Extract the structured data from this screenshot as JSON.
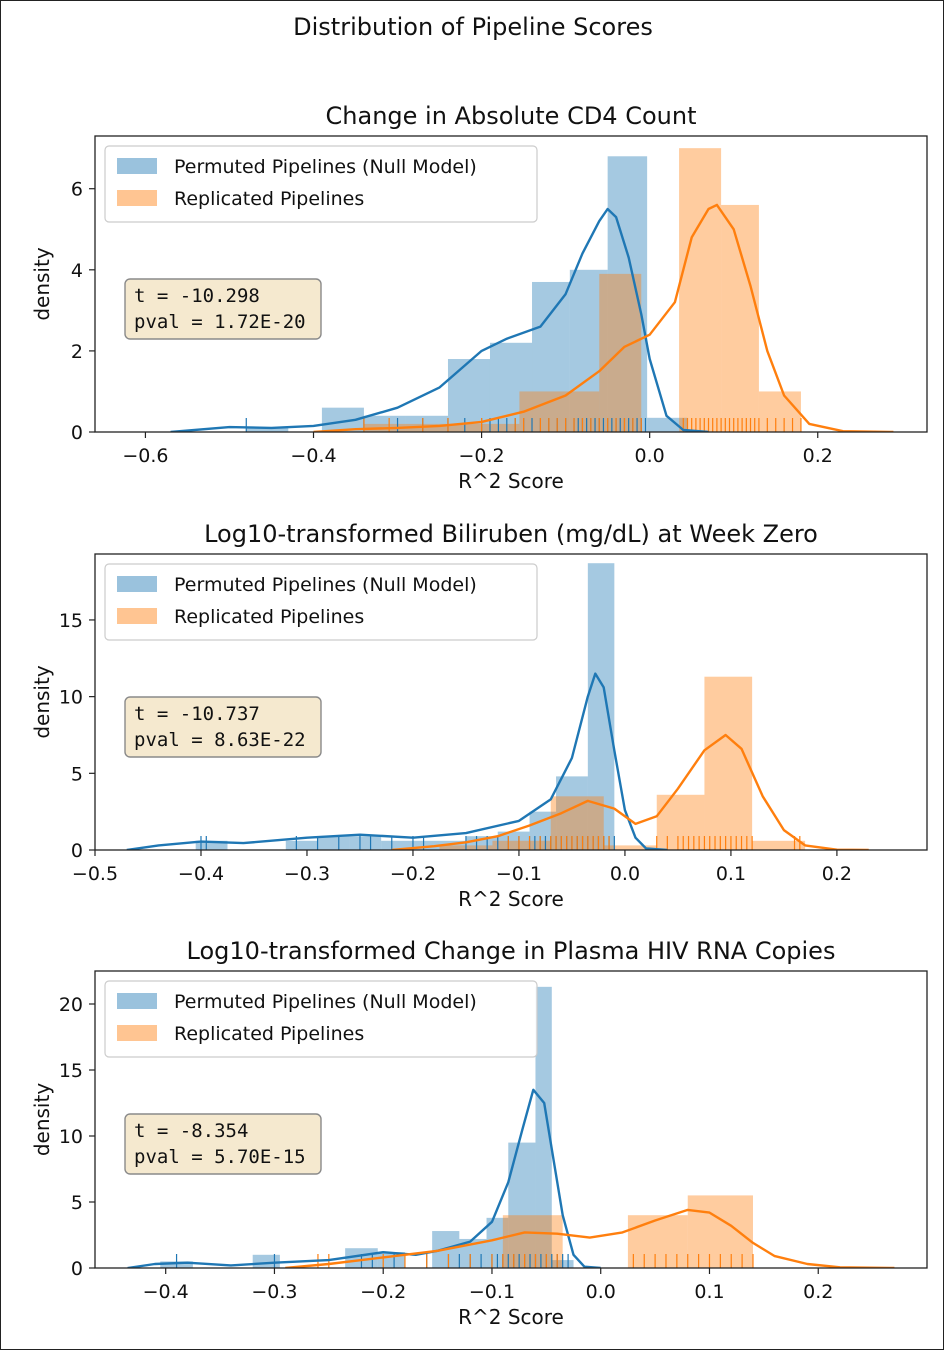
{
  "figure": {
    "title": "Distribution of Pipeline Scores"
  },
  "colors": {
    "null": "#1f77b4",
    "replicated": "#ff7f0e",
    "stat_box_fill": "#f5e9cf",
    "stat_box_edge": "#8a8a8a"
  },
  "chart_data": [
    {
      "type": "bar",
      "title": "Change in Absolute CD4 Count",
      "xlabel": "R^2 Score",
      "ylabel": "density",
      "xlim": [
        -0.66,
        0.33
      ],
      "ylim": [
        0,
        7.3
      ],
      "xticks": [
        -0.6,
        -0.4,
        -0.2,
        0.0,
        0.2
      ],
      "xtick_labels": [
        "−0.6",
        "−0.4",
        "−0.2",
        "0.0",
        "0.2"
      ],
      "yticks": [
        0,
        2,
        4,
        6
      ],
      "ytick_labels": [
        "0",
        "2",
        "4",
        "6"
      ],
      "legend": [
        "Permuted Pipelines (Null Model)",
        "Replicated Pipelines"
      ],
      "stats": {
        "t_label": "t = -10.298",
        "pval_label": "pval = 1.72E-20"
      },
      "series": [
        {
          "name": "Permuted Pipelines (Null Model)",
          "bins": [
            [
              -0.48,
              -0.43,
              0.1
            ],
            [
              -0.39,
              -0.34,
              0.6
            ],
            [
              -0.34,
              -0.29,
              0.4
            ],
            [
              -0.29,
              -0.24,
              0.4
            ],
            [
              -0.24,
              -0.19,
              1.8
            ],
            [
              -0.19,
              -0.14,
              2.2
            ],
            [
              -0.14,
              -0.095,
              3.7
            ],
            [
              -0.095,
              -0.05,
              4.0
            ],
            [
              -0.05,
              -0.003,
              6.8
            ],
            [
              -0.003,
              0.045,
              0.35
            ]
          ],
          "kde": [
            [
              -0.57,
              0.0
            ],
            [
              -0.5,
              0.12
            ],
            [
              -0.45,
              0.1
            ],
            [
              -0.4,
              0.15
            ],
            [
              -0.35,
              0.3
            ],
            [
              -0.3,
              0.6
            ],
            [
              -0.25,
              1.1
            ],
            [
              -0.2,
              2.0
            ],
            [
              -0.17,
              2.3
            ],
            [
              -0.13,
              2.6
            ],
            [
              -0.1,
              3.4
            ],
            [
              -0.08,
              4.4
            ],
            [
              -0.06,
              5.2
            ],
            [
              -0.05,
              5.5
            ],
            [
              -0.04,
              5.3
            ],
            [
              -0.025,
              4.3
            ],
            [
              -0.01,
              2.9
            ],
            [
              0.0,
              1.8
            ],
            [
              0.02,
              0.4
            ],
            [
              0.04,
              0.05
            ],
            [
              0.07,
              0.0
            ]
          ],
          "rug": [
            -0.48,
            -0.34,
            -0.3,
            -0.27,
            -0.24,
            -0.22,
            -0.2,
            -0.19,
            -0.18,
            -0.17,
            -0.16,
            -0.15,
            -0.14,
            -0.13,
            -0.12,
            -0.11,
            -0.1,
            -0.09,
            -0.085,
            -0.08,
            -0.075,
            -0.07,
            -0.065,
            -0.06,
            -0.055,
            -0.05,
            -0.045,
            -0.04,
            -0.035,
            -0.03,
            -0.025,
            -0.02,
            -0.015,
            -0.01,
            -0.005
          ]
        },
        {
          "name": "Replicated Pipelines",
          "bins": [
            [
              -0.34,
              -0.24,
              0.2
            ],
            [
              -0.24,
              -0.155,
              0.2
            ],
            [
              -0.155,
              -0.06,
              1.0
            ],
            [
              -0.06,
              -0.01,
              3.9
            ],
            [
              0.035,
              0.085,
              7.0
            ],
            [
              0.085,
              0.13,
              5.6
            ],
            [
              0.13,
              0.18,
              1.0
            ]
          ],
          "kde": [
            [
              -0.4,
              0.0
            ],
            [
              -0.35,
              0.07
            ],
            [
              -0.3,
              0.1
            ],
            [
              -0.25,
              0.15
            ],
            [
              -0.2,
              0.25
            ],
            [
              -0.15,
              0.5
            ],
            [
              -0.1,
              0.9
            ],
            [
              -0.06,
              1.5
            ],
            [
              -0.03,
              2.1
            ],
            [
              0.0,
              2.4
            ],
            [
              0.03,
              3.2
            ],
            [
              0.05,
              4.8
            ],
            [
              0.07,
              5.5
            ],
            [
              0.08,
              5.6
            ],
            [
              0.1,
              5.0
            ],
            [
              0.12,
              3.6
            ],
            [
              0.14,
              2.0
            ],
            [
              0.16,
              0.9
            ],
            [
              0.19,
              0.2
            ],
            [
              0.23,
              0.02
            ],
            [
              0.29,
              0.0
            ]
          ],
          "rug": [
            -0.34,
            -0.31,
            -0.27,
            -0.24,
            -0.2,
            -0.16,
            -0.15,
            -0.13,
            -0.12,
            -0.11,
            -0.1,
            -0.09,
            -0.08,
            -0.07,
            -0.06,
            -0.05,
            -0.04,
            -0.03,
            -0.02,
            -0.01,
            0.04,
            0.045,
            0.05,
            0.055,
            0.06,
            0.065,
            0.07,
            0.075,
            0.08,
            0.085,
            0.09,
            0.095,
            0.1,
            0.105,
            0.11,
            0.115,
            0.12,
            0.125,
            0.13,
            0.14,
            0.15,
            0.16,
            0.17,
            0.18
          ]
        }
      ]
    },
    {
      "type": "bar",
      "title": "Log10-transformed Biliruben (mg/dL) at Week Zero",
      "xlabel": "R^2 Score",
      "ylabel": "density",
      "xlim": [
        -0.5,
        0.285
      ],
      "ylim": [
        0,
        19.3
      ],
      "xticks": [
        -0.5,
        -0.4,
        -0.3,
        -0.2,
        -0.1,
        0.0,
        0.1,
        0.2
      ],
      "xtick_labels": [
        "−0.5",
        "−0.4",
        "−0.3",
        "−0.2",
        "−0.1",
        "0.0",
        "0.1",
        "0.2"
      ],
      "yticks": [
        0,
        5,
        10,
        15
      ],
      "ytick_labels": [
        "0",
        "5",
        "10",
        "15"
      ],
      "legend": [
        "Permuted Pipelines (Null Model)",
        "Replicated Pipelines"
      ],
      "stats": {
        "t_label": "t = -10.737",
        "pval_label": "pval = 8.63E-22"
      },
      "series": [
        {
          "name": "Permuted Pipelines (Null Model)",
          "bins": [
            [
              -0.405,
              -0.375,
              0.6
            ],
            [
              -0.32,
              -0.29,
              0.6
            ],
            [
              -0.29,
              -0.26,
              0.9
            ],
            [
              -0.26,
              -0.23,
              0.9
            ],
            [
              -0.23,
              -0.2,
              0.6
            ],
            [
              -0.2,
              -0.175,
              0.6
            ],
            [
              -0.175,
              -0.15,
              0.6
            ],
            [
              -0.15,
              -0.12,
              0.9
            ],
            [
              -0.12,
              -0.09,
              1.2
            ],
            [
              -0.09,
              -0.065,
              2.5
            ],
            [
              -0.065,
              -0.035,
              4.8
            ],
            [
              -0.035,
              -0.01,
              18.7
            ]
          ],
          "kde": [
            [
              -0.47,
              0.0
            ],
            [
              -0.44,
              0.3
            ],
            [
              -0.4,
              0.55
            ],
            [
              -0.36,
              0.45
            ],
            [
              -0.3,
              0.8
            ],
            [
              -0.25,
              1.0
            ],
            [
              -0.2,
              0.8
            ],
            [
              -0.15,
              1.1
            ],
            [
              -0.1,
              1.9
            ],
            [
              -0.07,
              3.3
            ],
            [
              -0.05,
              6.0
            ],
            [
              -0.035,
              10.0
            ],
            [
              -0.028,
              11.5
            ],
            [
              -0.02,
              10.6
            ],
            [
              -0.01,
              6.5
            ],
            [
              0.0,
              2.6
            ],
            [
              0.01,
              0.8
            ],
            [
              0.02,
              0.1
            ],
            [
              0.04,
              0.0
            ]
          ],
          "rug": [
            -0.4,
            -0.395,
            -0.31,
            -0.29,
            -0.27,
            -0.25,
            -0.24,
            -0.22,
            -0.2,
            -0.19,
            -0.15,
            -0.14,
            -0.13,
            -0.12,
            -0.11,
            -0.1,
            -0.09,
            -0.085,
            -0.08,
            -0.075,
            -0.07,
            -0.065,
            -0.06,
            -0.055,
            -0.05,
            -0.045,
            -0.04,
            -0.035,
            -0.03,
            -0.025,
            -0.02,
            -0.015,
            -0.01
          ]
        },
        {
          "name": "Replicated Pipelines",
          "bins": [
            [
              -0.175,
              -0.125,
              0.3
            ],
            [
              -0.125,
              -0.07,
              0.6
            ],
            [
              -0.07,
              -0.02,
              3.5
            ],
            [
              -0.02,
              0.03,
              0.3
            ],
            [
              0.03,
              0.075,
              3.6
            ],
            [
              0.075,
              0.12,
              11.3
            ],
            [
              0.12,
              0.17,
              0.6
            ]
          ],
          "kde": [
            [
              -0.22,
              0.0
            ],
            [
              -0.18,
              0.25
            ],
            [
              -0.15,
              0.5
            ],
            [
              -0.12,
              0.9
            ],
            [
              -0.09,
              1.6
            ],
            [
              -0.06,
              2.4
            ],
            [
              -0.035,
              3.2
            ],
            [
              -0.01,
              2.7
            ],
            [
              0.01,
              1.7
            ],
            [
              0.03,
              2.2
            ],
            [
              0.05,
              4.0
            ],
            [
              0.075,
              6.5
            ],
            [
              0.095,
              7.5
            ],
            [
              0.11,
              6.6
            ],
            [
              0.13,
              3.5
            ],
            [
              0.15,
              1.3
            ],
            [
              0.17,
              0.3
            ],
            [
              0.2,
              0.02
            ],
            [
              0.23,
              0.0
            ]
          ],
          "rug": [
            -0.11,
            -0.1,
            -0.09,
            -0.08,
            -0.07,
            -0.065,
            -0.06,
            -0.055,
            -0.05,
            -0.045,
            -0.04,
            -0.035,
            -0.03,
            -0.025,
            -0.02,
            -0.015,
            0.03,
            0.04,
            0.05,
            0.055,
            0.06,
            0.065,
            0.07,
            0.075,
            0.08,
            0.085,
            0.09,
            0.095,
            0.1,
            0.105,
            0.11,
            0.115,
            0.12,
            0.16,
            0.165
          ]
        }
      ]
    },
    {
      "type": "bar",
      "title": "Log10-transformed Change in Plasma HIV RNA Copies",
      "xlabel": "R^2 Score",
      "ylabel": "density",
      "xlim": [
        -0.465,
        0.3
      ],
      "ylim": [
        0,
        22.5
      ],
      "xticks": [
        -0.4,
        -0.3,
        -0.2,
        -0.1,
        0.0,
        0.1,
        0.2
      ],
      "xtick_labels": [
        "−0.4",
        "−0.3",
        "−0.2",
        "−0.1",
        "0.0",
        "0.1",
        "0.2"
      ],
      "yticks": [
        0,
        5,
        10,
        15,
        20
      ],
      "ytick_labels": [
        "0",
        "5",
        "10",
        "15",
        "20"
      ],
      "legend": [
        "Permuted Pipelines (Null Model)",
        "Replicated Pipelines"
      ],
      "stats": {
        "t_label": "t = -8.354",
        "pval_label": "pval = 5.70E-15"
      },
      "series": [
        {
          "name": "Permuted Pipelines (Null Model)",
          "bins": [
            [
              -0.405,
              -0.375,
              0.5
            ],
            [
              -0.32,
              -0.295,
              1.0
            ],
            [
              -0.235,
              -0.205,
              1.5
            ],
            [
              -0.205,
              -0.18,
              1.2
            ],
            [
              -0.155,
              -0.13,
              2.8
            ],
            [
              -0.13,
              -0.105,
              2.2
            ],
            [
              -0.105,
              -0.085,
              3.8
            ],
            [
              -0.085,
              -0.06,
              9.5
            ],
            [
              -0.06,
              -0.045,
              21.3
            ],
            [
              -0.045,
              -0.025,
              0.6
            ]
          ],
          "kde": [
            [
              -0.435,
              0.0
            ],
            [
              -0.41,
              0.3
            ],
            [
              -0.38,
              0.4
            ],
            [
              -0.34,
              0.2
            ],
            [
              -0.3,
              0.4
            ],
            [
              -0.25,
              0.6
            ],
            [
              -0.2,
              1.2
            ],
            [
              -0.17,
              1.0
            ],
            [
              -0.15,
              1.3
            ],
            [
              -0.12,
              2.0
            ],
            [
              -0.1,
              3.5
            ],
            [
              -0.085,
              6.5
            ],
            [
              -0.072,
              10.5
            ],
            [
              -0.062,
              13.5
            ],
            [
              -0.052,
              12.5
            ],
            [
              -0.045,
              9.0
            ],
            [
              -0.035,
              4.0
            ],
            [
              -0.025,
              1.0
            ],
            [
              -0.015,
              0.1
            ],
            [
              0.0,
              0.0
            ]
          ],
          "rug": [
            -0.39,
            -0.3,
            -0.22,
            -0.21,
            -0.19,
            -0.16,
            -0.14,
            -0.13,
            -0.12,
            -0.11,
            -0.1,
            -0.095,
            -0.09,
            -0.085,
            -0.08,
            -0.075,
            -0.07,
            -0.065,
            -0.06,
            -0.055,
            -0.05,
            -0.045,
            -0.04,
            -0.035,
            -0.03
          ]
        },
        {
          "name": "Replicated Pipelines",
          "bins": [
            [
              -0.09,
              -0.035,
              4.0
            ],
            [
              0.025,
              0.08,
              4.0
            ],
            [
              0.08,
              0.14,
              5.5
            ]
          ],
          "kde": [
            [
              -0.29,
              0.0
            ],
            [
              -0.25,
              0.3
            ],
            [
              -0.2,
              0.8
            ],
            [
              -0.15,
              1.3
            ],
            [
              -0.1,
              2.1
            ],
            [
              -0.07,
              2.7
            ],
            [
              -0.04,
              2.6
            ],
            [
              -0.01,
              2.3
            ],
            [
              0.02,
              2.7
            ],
            [
              0.05,
              3.6
            ],
            [
              0.08,
              4.4
            ],
            [
              0.1,
              4.2
            ],
            [
              0.12,
              3.2
            ],
            [
              0.14,
              1.9
            ],
            [
              0.16,
              0.9
            ],
            [
              0.19,
              0.3
            ],
            [
              0.22,
              0.05
            ],
            [
              0.27,
              0.0
            ]
          ],
          "rug": [
            -0.26,
            -0.25,
            -0.2,
            -0.18,
            -0.16,
            -0.14,
            -0.12,
            -0.1,
            -0.09,
            -0.08,
            -0.07,
            -0.06,
            -0.05,
            -0.04,
            0.03,
            0.04,
            0.05,
            0.06,
            0.07,
            0.08,
            0.09,
            0.1,
            0.11,
            0.12,
            0.13,
            0.14
          ]
        }
      ]
    }
  ]
}
